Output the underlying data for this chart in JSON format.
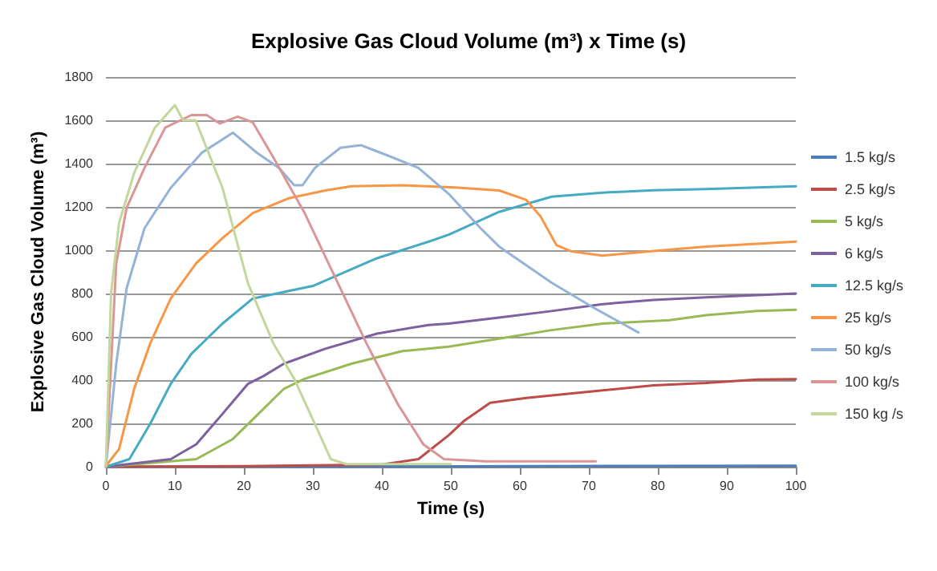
{
  "chart_data": {
    "type": "line",
    "title": "Explosive Gas Cloud Volume (m³) x Time (s)",
    "xlabel": "Time (s)",
    "ylabel": "Explosive Gas Cloud Volume (m³)",
    "xlim": [
      0,
      100
    ],
    "xticks": [
      0,
      10,
      20,
      30,
      40,
      50,
      60,
      70,
      80,
      90,
      100
    ],
    "ylim": [
      0,
      1800
    ],
    "yticks": [
      0,
      200,
      400,
      600,
      800,
      1000,
      1200,
      1400,
      1600,
      1800
    ],
    "grid": "y",
    "legend": "right",
    "marker": "none",
    "line_style": "solid",
    "series": [
      {
        "name": "1.5 kg/s",
        "color": "#4a7ebb",
        "x": [
          0,
          50,
          100
        ],
        "values": [
          0,
          2,
          5
        ]
      },
      {
        "name": "2.5 kg/s",
        "color": "#be4b48",
        "x": [
          0,
          20,
          40,
          45.3,
          49.7,
          52,
          55.7,
          60.9,
          72,
          79.4,
          87,
          94.4,
          100
        ],
        "values": [
          0,
          3,
          10,
          35,
          146,
          214,
          295,
          318,
          353,
          376,
          387,
          403,
          405
        ]
      },
      {
        "name": "5 kg/s",
        "color": "#98b954",
        "x": [
          0,
          13.1,
          18.4,
          22.1,
          25.8,
          28.8,
          35.6,
          43,
          49.7,
          57,
          64.6,
          72,
          81.7,
          87,
          94.4,
          100
        ],
        "values": [
          0,
          35,
          128,
          244,
          360,
          406,
          476,
          534,
          555,
          592,
          631,
          661,
          677,
          700,
          719,
          725
        ]
      },
      {
        "name": "6 kg/s",
        "color": "#7d60a0",
        "x": [
          0,
          9.4,
          13.1,
          16.9,
          20.6,
          22.8,
          25.8,
          31.8,
          39.3,
          46.8,
          49.7,
          57,
          64.6,
          72,
          79.4,
          87,
          94.4,
          100
        ],
        "values": [
          0,
          35,
          104,
          244,
          383,
          418,
          476,
          545,
          615,
          655,
          661,
          689,
          719,
          751,
          770,
          782,
          793,
          800
        ]
      },
      {
        "name": "12.5 kg/s",
        "color": "#46aac5",
        "x": [
          0,
          3.4,
          6.4,
          9.4,
          12.4,
          16.9,
          21.3,
          30,
          39.3,
          46.8,
          49.7,
          57,
          64.6,
          72,
          79.4,
          87,
          100
        ],
        "values": [
          0,
          35,
          197,
          383,
          522,
          661,
          777,
          835,
          963,
          1040,
          1072,
          1177,
          1247,
          1266,
          1277,
          1282,
          1295
        ]
      },
      {
        "name": "25 kg/s",
        "color": "#f79646",
        "x": [
          0,
          0.2,
          1.9,
          4.1,
          6.4,
          9.4,
          13.1,
          16.9,
          21.3,
          26.6,
          31.8,
          35.6,
          43,
          50.6,
          57,
          60.9,
          63,
          65.3,
          67.5,
          72,
          79.4,
          87,
          94.4,
          100
        ],
        "values": [
          0,
          12,
          81,
          360,
          568,
          777,
          940,
          1056,
          1172,
          1241,
          1276,
          1295,
          1300,
          1290,
          1276,
          1233,
          1156,
          1024,
          994,
          975,
          996,
          1017,
          1030,
          1040
        ]
      },
      {
        "name": "50 kg/s",
        "color": "#95b3d7",
        "x": [
          0,
          1.5,
          3,
          5.6,
          9.4,
          13.9,
          18.4,
          21.9,
          25.1,
          27.3,
          28.5,
          30.3,
          34,
          37,
          40.8,
          45.3,
          49.7,
          54.3,
          57,
          64.6,
          70.5,
          77.2
        ],
        "values": [
          0,
          475,
          824,
          1102,
          1288,
          1450,
          1543,
          1450,
          1380,
          1300,
          1300,
          1380,
          1473,
          1485,
          1438,
          1380,
          1260,
          1102,
          1017,
          850,
          738,
          620
        ]
      },
      {
        "name": "100 kg/s",
        "color": "#d99694",
        "x": [
          0,
          1.5,
          3,
          5.6,
          8.6,
          12.4,
          14.6,
          16.5,
          19.1,
          21.3,
          24.3,
          28.8,
          33.3,
          37.8,
          42.3,
          46,
          49,
          55,
          71
        ],
        "values": [
          0,
          940,
          1195,
          1380,
          1566,
          1624,
          1624,
          1585,
          1617,
          1590,
          1427,
          1172,
          870,
          568,
          290,
          104,
          35,
          25,
          25
        ]
      },
      {
        "name": "150 kg /s",
        "color": "#c3d69b",
        "x": [
          0,
          0.75,
          1.9,
          4.1,
          7.1,
          10,
          11.2,
          13,
          16.9,
          20.6,
          24.3,
          27.3,
          30.3,
          32.6,
          34.8,
          50
        ],
        "values": [
          0,
          800,
          1125,
          1357,
          1566,
          1670,
          1600,
          1600,
          1288,
          847,
          568,
          406,
          197,
          35,
          12,
          12
        ]
      }
    ]
  }
}
